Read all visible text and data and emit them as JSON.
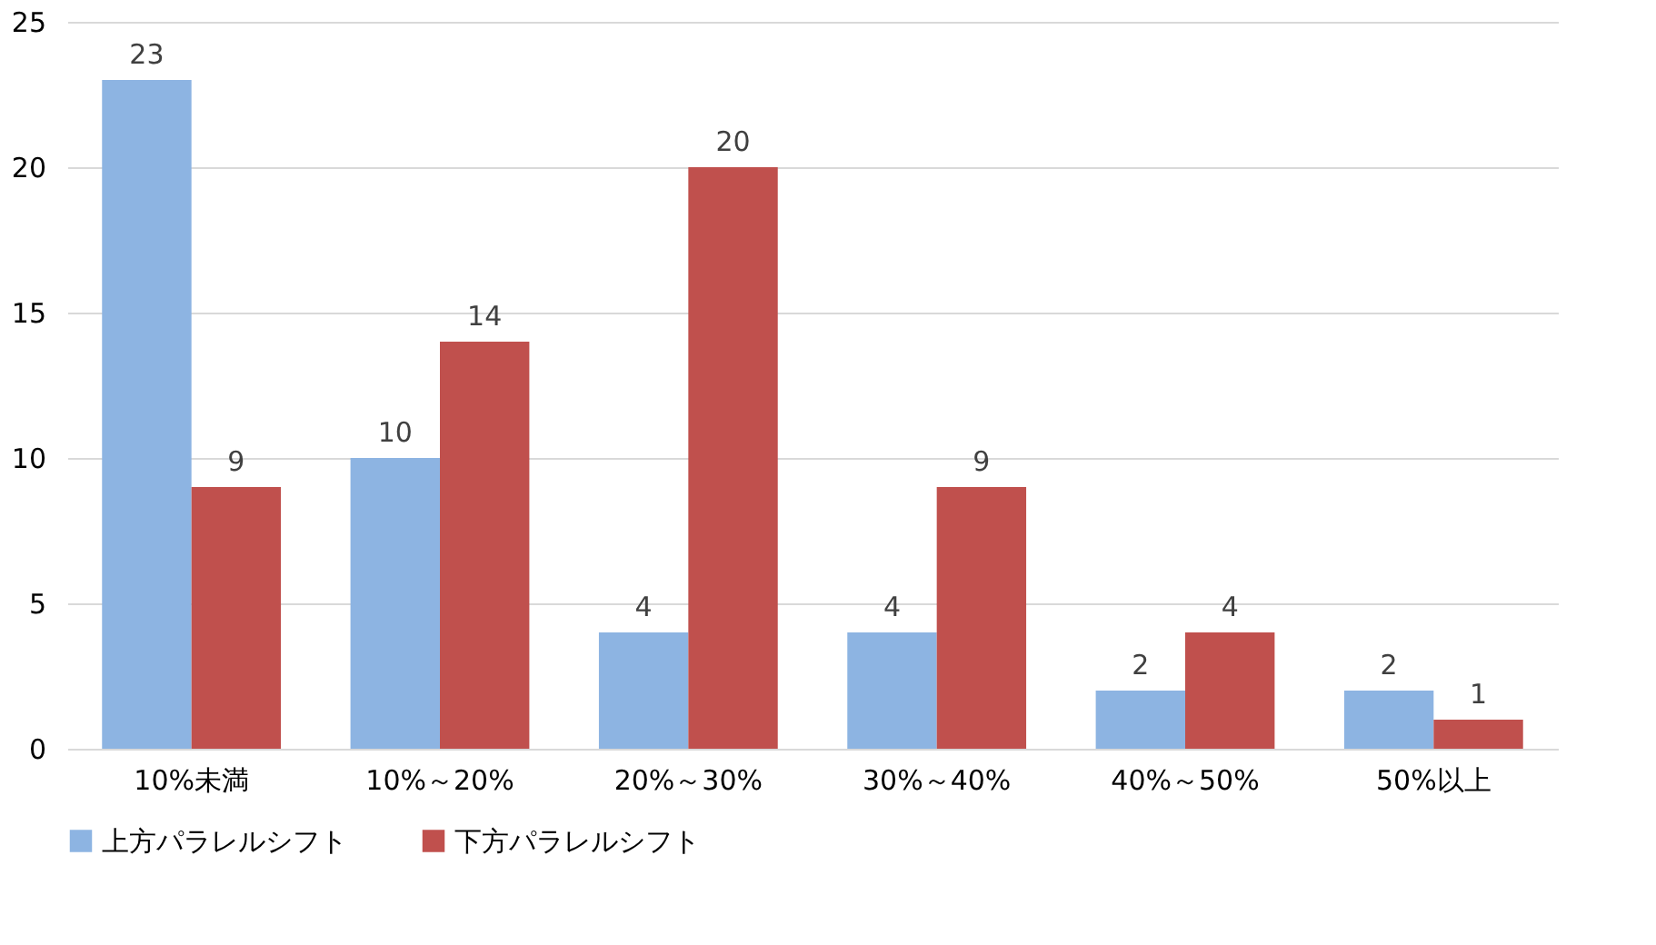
{
  "chart_data": {
    "type": "bar",
    "categories": [
      "10%未満",
      "10%～20%",
      "20%～30%",
      "30%～40%",
      "40%～50%",
      "50%以上"
    ],
    "series": [
      {
        "name": "上方パラレルシフト",
        "color": "#8db4e2",
        "values": [
          23,
          10,
          4,
          4,
          2,
          2
        ]
      },
      {
        "name": "下方パラレルシフト",
        "color": "#c0504d",
        "values": [
          9,
          14,
          20,
          9,
          4,
          1
        ]
      }
    ],
    "ylim": [
      0,
      25
    ],
    "yticks": [
      0,
      5,
      10,
      15,
      20,
      25
    ],
    "grid": "y",
    "legend": "bottom",
    "data_labels": true
  }
}
